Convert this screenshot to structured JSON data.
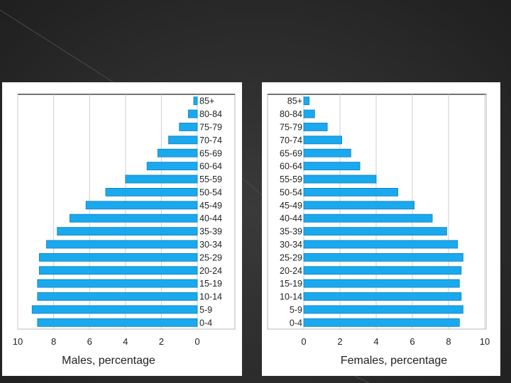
{
  "chart_data": [
    {
      "type": "bar",
      "orientation": "horizontal",
      "direction": "leftward",
      "xlabel": "Males, percentage",
      "xlim": [
        0,
        10
      ],
      "xticks": [
        "10",
        "8",
        "6",
        "4",
        "2",
        "0"
      ],
      "grid": true,
      "bar_color": "#1aa9ee",
      "categories": [
        "85+",
        "80-84",
        "75-79",
        "70-74",
        "65-69",
        "60-64",
        "55-59",
        "50-54",
        "45-49",
        "40-44",
        "35-39",
        "30-34",
        "25-29",
        "20-24",
        "15-19",
        "10-14",
        "5-9",
        "0-4"
      ],
      "values": [
        0.2,
        0.5,
        1.0,
        1.6,
        2.2,
        2.8,
        4.0,
        5.1,
        6.2,
        7.1,
        7.8,
        8.4,
        8.8,
        8.8,
        8.9,
        8.9,
        9.2,
        8.9
      ]
    },
    {
      "type": "bar",
      "orientation": "horizontal",
      "direction": "rightward",
      "xlabel": "Females, percentage",
      "xlim": [
        0,
        10
      ],
      "xticks": [
        "0",
        "2",
        "4",
        "6",
        "8",
        "10"
      ],
      "grid": true,
      "bar_color": "#1aa9ee",
      "categories": [
        "85+",
        "80-84",
        "75-79",
        "70-74",
        "65-69",
        "60-64",
        "55-59",
        "50-54",
        "45-49",
        "40-44",
        "35-39",
        "30-34",
        "25-29",
        "20-24",
        "15-19",
        "10-14",
        "5-9",
        "0-4"
      ],
      "values": [
        0.3,
        0.6,
        1.3,
        2.1,
        2.6,
        3.1,
        4.0,
        5.2,
        6.1,
        7.1,
        7.9,
        8.5,
        8.8,
        8.7,
        8.6,
        8.7,
        8.8,
        8.6
      ]
    }
  ]
}
